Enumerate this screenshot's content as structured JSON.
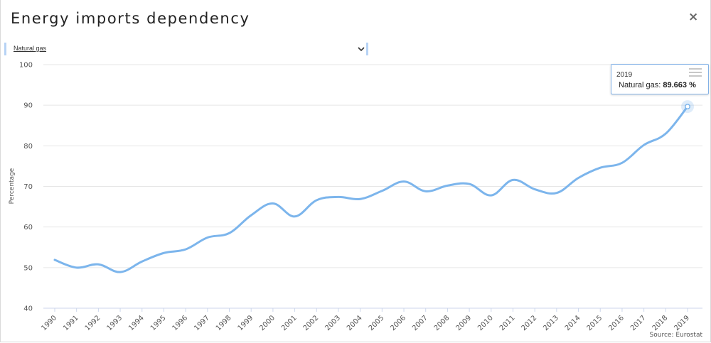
{
  "window": {
    "title": "Energy imports dependency",
    "close_symbol": "×"
  },
  "selector": {
    "selected": "Natural gas"
  },
  "tooltip": {
    "year": "2019",
    "series_label": "Natural gas:",
    "value_text": "89.663 %"
  },
  "source": "Source: Eurostat",
  "colors": {
    "line": "#7cb5ec",
    "grid": "#e6e6e6",
    "tooltip_border": "#82b1e6"
  },
  "chart_data": {
    "type": "line",
    "title": "Energy imports dependency",
    "xlabel": "",
    "ylabel": "Percentage",
    "ylim": [
      40,
      100
    ],
    "yticks": [
      40,
      50,
      60,
      70,
      80,
      90,
      100
    ],
    "grid": true,
    "categories": [
      "1990",
      "1991",
      "1992",
      "1993",
      "1994",
      "1995",
      "1996",
      "1997",
      "1998",
      "1999",
      "2000",
      "2001",
      "2002",
      "2003",
      "2004",
      "2005",
      "2006",
      "2007",
      "2008",
      "2009",
      "2010",
      "2011",
      "2012",
      "2013",
      "2014",
      "2015",
      "2016",
      "2017",
      "2018",
      "2019"
    ],
    "series": [
      {
        "name": "Natural gas",
        "values": [
          51.9,
          50.0,
          50.8,
          48.9,
          51.5,
          53.6,
          54.5,
          57.4,
          58.5,
          62.9,
          65.8,
          62.6,
          66.6,
          67.4,
          66.9,
          68.9,
          71.2,
          68.8,
          70.2,
          70.6,
          67.8,
          71.6,
          69.3,
          68.4,
          72.1,
          74.6,
          75.8,
          80.2,
          83.0,
          89.663
        ]
      }
    ],
    "highlighted_point": {
      "x": "2019",
      "value": 89.663
    }
  }
}
